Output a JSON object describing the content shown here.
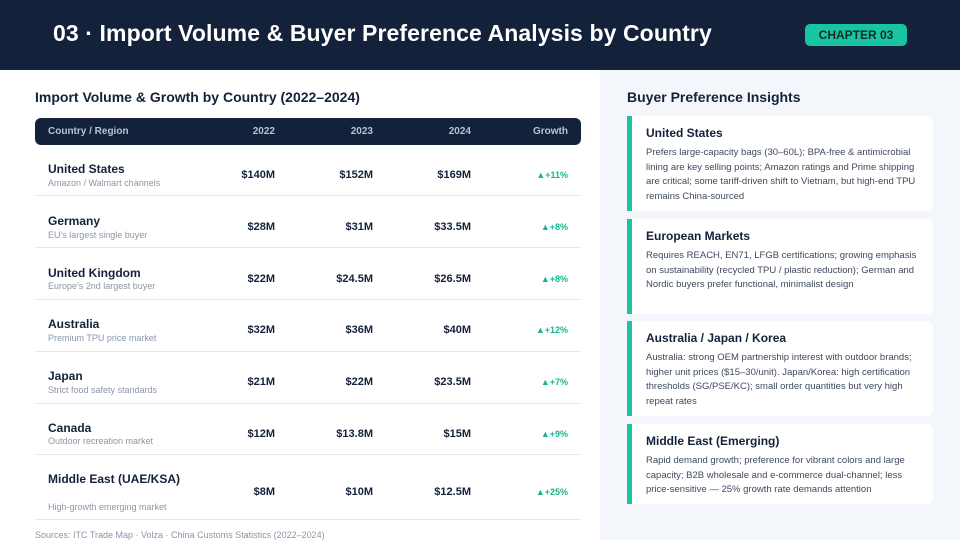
{
  "header": {
    "title": "03 · Import Volume & Buyer Preference Analysis by Country",
    "chapter_badge": "CHAPTER 03"
  },
  "table": {
    "title": "Import Volume & Growth by Country (2022–2024)",
    "columns": [
      "Country / Region",
      "2022",
      "2023",
      "2024",
      "Growth"
    ],
    "rows": [
      {
        "name": "United States",
        "sub": "Amazon / Walmart channels",
        "v2022": "$140M",
        "v2023": "$152M",
        "v2024": "$169M",
        "growth": "▲+11%"
      },
      {
        "name": "Germany",
        "sub": "EU's largest single buyer",
        "v2022": "$28M",
        "v2023": "$31M",
        "v2024": "$33.5M",
        "growth": "▲+8%"
      },
      {
        "name": "United Kingdom",
        "sub": "Europe's 2nd largest buyer",
        "v2022": "$22M",
        "v2023": "$24.5M",
        "v2024": "$26.5M",
        "growth": "▲+8%"
      },
      {
        "name": "Australia",
        "sub": "Premium TPU price market",
        "v2022": "$32M",
        "v2023": "$36M",
        "v2024": "$40M",
        "growth": "▲+12%"
      },
      {
        "name": "Japan",
        "sub": "Strict food safety standards",
        "v2022": "$21M",
        "v2023": "$22M",
        "v2024": "$23.5M",
        "growth": "▲+7%"
      },
      {
        "name": "Canada",
        "sub": "Outdoor recreation market",
        "v2022": "$12M",
        "v2023": "$13.8M",
        "v2024": "$15M",
        "growth": "▲+9%"
      },
      {
        "name": "Middle East (UAE/KSA)",
        "sub": "High-growth emerging market",
        "v2022": "$8M",
        "v2023": "$10M",
        "v2024": "$12.5M",
        "growth": "▲+25%"
      }
    ],
    "sources": "Sources: ITC Trade Map · Volza · China Customs Statistics (2022–2024)"
  },
  "insights": {
    "title": "Buyer Preference Insights",
    "cards": [
      {
        "title": "United States",
        "body": "Prefers large-capacity bags (30–60L); BPA-free & antimicrobial lining are key selling points; Amazon ratings and Prime shipping are critical; some tariff-driven shift to Vietnam, but high-end TPU remains China-sourced"
      },
      {
        "title": "European Markets",
        "body": "Requires REACH, EN71, LFGB certifications; growing emphasis on sustainability (recycled TPU / plastic reduction); German and Nordic buyers prefer functional, minimalist design"
      },
      {
        "title": "Australia / Japan / Korea",
        "body": "Australia: strong OEM partnership interest with outdoor brands; higher unit prices ($15–30/unit). Japan/Korea: high certification thresholds (SG/PSE/KC); small order quantities but very high repeat rates"
      },
      {
        "title": "Middle East (Emerging)",
        "body": "Rapid demand growth; preference for vibrant colors and large capacity; B2B wholesale and e-commerce dual-channel; less price-sensitive — 25% growth rate demands attention"
      }
    ]
  },
  "colors": {
    "navy": "#14213a",
    "accent": "#19c4a0",
    "growth": "#19b58e"
  }
}
